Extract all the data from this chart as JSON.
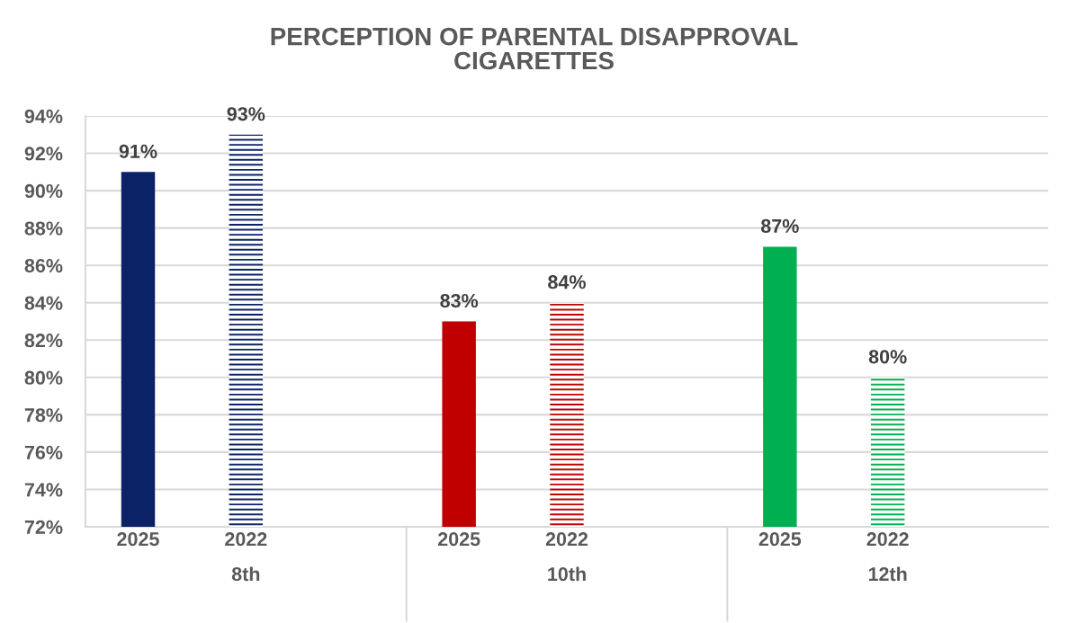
{
  "chart_data": {
    "type": "bar",
    "title": "PERCEPTION OF PARENTAL DISAPPROVAL\nCIGARETTES",
    "categories": [
      "8th",
      "10th",
      "12th"
    ],
    "series": [
      {
        "name": "2025",
        "colors": [
          "#0c2266",
          "#c00000",
          "#00b050"
        ],
        "values": [
          91,
          83,
          87
        ],
        "value_labels": [
          "91%",
          "83%",
          "87%"
        ]
      },
      {
        "name": "2022",
        "colors": [
          "#0c2266",
          "#c00000",
          "#00b050"
        ],
        "values": [
          93,
          84,
          80
        ],
        "value_labels": [
          "93%",
          "84%",
          "80%"
        ]
      }
    ],
    "ylim": [
      72,
      94
    ],
    "yticks": [
      {
        "value": 72,
        "label": "72%"
      },
      {
        "value": 74,
        "label": "74%"
      },
      {
        "value": 76,
        "label": "76%"
      },
      {
        "value": 78,
        "label": "78%"
      },
      {
        "value": 80,
        "label": "80%"
      },
      {
        "value": 82,
        "label": "82%"
      },
      {
        "value": 84,
        "label": "84%"
      },
      {
        "value": 86,
        "label": "86%"
      },
      {
        "value": 88,
        "label": "88%"
      },
      {
        "value": 90,
        "label": "90%"
      },
      {
        "value": 92,
        "label": "92%"
      },
      {
        "value": 94,
        "label": "94%"
      }
    ],
    "grid": "y",
    "legend": false
  }
}
